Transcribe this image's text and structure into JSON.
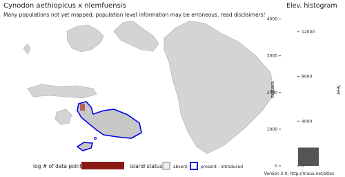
{
  "header": {
    "title": "Cynodon aethiopicus x nlemfuensis",
    "subtitle": "Many populations not yet mapped; population level information may be erroneous, read disclaimers!"
  },
  "histogram": {
    "title": "Elev. histogram",
    "y_label": "meters",
    "y2_label": "feet",
    "ylim": [
      0,
      4200
    ],
    "yticks": [
      0,
      1000,
      2000,
      3000,
      4000
    ],
    "y2ticks": [
      0,
      4000,
      8000,
      12000
    ],
    "bins": [
      0,
      500
    ],
    "counts": [
      1
    ],
    "xlim": [
      0,
      1
    ],
    "color": "#555555"
  },
  "legend": {
    "points_label": "log # of data points",
    "points_color": "#8b1a12",
    "status_label": "island status",
    "absent": "absent",
    "absent_color": "#bbbbbb",
    "present": "present - introduced",
    "present_color": "#0000ee"
  },
  "footer": {
    "version": "Version 2.0; http://mauu.net/atlas"
  }
}
